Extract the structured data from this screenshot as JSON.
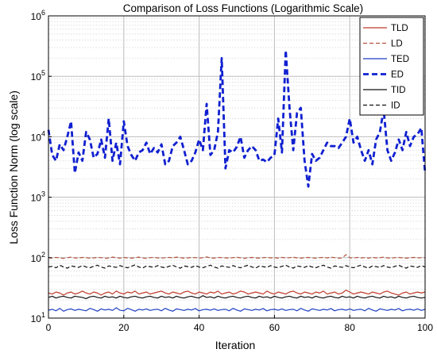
{
  "chart_data": {
    "type": "line",
    "title": "Comparison of Loss Functions (Logarithmic Scale)",
    "xlabel": "Iteration",
    "ylabel": "Loss Function Norm (log scale)",
    "xlim": [
      0,
      100
    ],
    "ylim": [
      10,
      1000000
    ],
    "yscale": "log",
    "grid": true,
    "legend_position": "top-right",
    "x_ticks": [
      "0",
      "20",
      "40",
      "60",
      "80",
      "100"
    ],
    "y_ticks": [
      {
        "base": "10",
        "exp": "1"
      },
      {
        "base": "10",
        "exp": "2"
      },
      {
        "base": "10",
        "exp": "3"
      },
      {
        "base": "10",
        "exp": "4"
      },
      {
        "base": "10",
        "exp": "5"
      },
      {
        "base": "10",
        "exp": "6"
      }
    ],
    "series": [
      {
        "name": "TLD",
        "color": "#c0392b",
        "dash": "solid",
        "width": 1.2,
        "values": [
          26,
          25,
          27,
          26,
          24,
          26,
          27,
          25,
          26,
          28,
          26,
          25,
          27,
          26,
          24,
          26,
          27,
          25,
          28,
          26,
          25,
          27,
          26,
          28,
          25,
          26,
          27,
          25,
          26,
          27,
          28,
          26,
          25,
          27,
          26,
          25,
          27,
          28,
          26,
          25,
          27,
          26,
          25,
          27,
          26,
          28,
          25,
          26,
          27,
          25,
          26,
          28,
          27,
          25,
          26,
          27,
          26,
          25,
          28,
          26,
          25,
          27,
          26,
          25,
          27,
          28,
          26,
          25,
          27,
          26,
          25,
          27,
          26,
          28,
          25,
          26,
          27,
          25,
          26,
          29,
          27,
          25,
          26,
          27,
          26,
          25,
          27,
          26,
          25,
          27,
          28,
          26,
          25,
          24,
          26,
          27,
          25,
          26,
          27,
          26,
          27
        ]
      },
      {
        "name": "LD",
        "color": "#b5523b",
        "dash": "dashed",
        "width": 1.2,
        "values": [
          100,
          98,
          101,
          99,
          97,
          100,
          102,
          99,
          98,
          101,
          100,
          98,
          99,
          101,
          100,
          97,
          99,
          102,
          100,
          98,
          101,
          99,
          98,
          100,
          102,
          99,
          97,
          100,
          101,
          99,
          98,
          100,
          101,
          99,
          102,
          100,
          98,
          99,
          101,
          100,
          98,
          100,
          103,
          99,
          98,
          101,
          100,
          99,
          98,
          100,
          102,
          99,
          97,
          100,
          101,
          99,
          98,
          100,
          101,
          99,
          100,
          98,
          101,
          99,
          100,
          102,
          99,
          98,
          100,
          101,
          99,
          98,
          100,
          101,
          99,
          102,
          100,
          98,
          99,
          112,
          100,
          98,
          101,
          99,
          100,
          98,
          101,
          99,
          100,
          102,
          99,
          98,
          100,
          101,
          99,
          98,
          100,
          101,
          99,
          100,
          100
        ]
      },
      {
        "name": "TED",
        "color": "#1f3fbf",
        "dash": "solid",
        "width": 1.2,
        "values": [
          13.5,
          14,
          13.2,
          14.5,
          13,
          13.8,
          14.2,
          13.4,
          14,
          13.6,
          13.2,
          14.5,
          13.8,
          13,
          14.2,
          13.6,
          14,
          13.4,
          14.8,
          13.5,
          13.2,
          14.5,
          13.8,
          13,
          14,
          13.6,
          14.2,
          13.4,
          13.8,
          14,
          13.2,
          14.5,
          13.6,
          13,
          14.2,
          13.8,
          13.4,
          14,
          13.6,
          14.4,
          13.2,
          13.8,
          14,
          13.5,
          14.2,
          13.4,
          13.8,
          14,
          13.2,
          14.5,
          13.6,
          13,
          14.2,
          13.8,
          13.4,
          14,
          13.6,
          14.4,
          13.2,
          13.8,
          14,
          13.5,
          14.2,
          13.4,
          13.8,
          14,
          13.2,
          14.5,
          13.6,
          13,
          14.2,
          13.8,
          13.4,
          14,
          13.6,
          14.4,
          13.2,
          13.8,
          14,
          13.5,
          14.2,
          13.4,
          13.8,
          14,
          13.2,
          14.5,
          13.6,
          13,
          14.2,
          13.8,
          13.4,
          14,
          13.6,
          14.4,
          13.2,
          13.8,
          14,
          13.5,
          14.2,
          13.4,
          14
        ]
      },
      {
        "name": "ED",
        "color": "#1020d0",
        "dash": "dashed",
        "width": 2.8,
        "values": [
          13000,
          5000,
          4000,
          7500,
          6000,
          10000,
          18000,
          2500,
          5500,
          4000,
          12000,
          9000,
          4500,
          5200,
          9000,
          4500,
          20000,
          4000,
          8000,
          3500,
          18000,
          7000,
          5000,
          4000,
          5500,
          6000,
          8000,
          5200,
          6500,
          5500,
          7500,
          3500,
          4000,
          7000,
          8000,
          10000,
          6000,
          3500,
          4000,
          5500,
          9000,
          6000,
          35000,
          5000,
          6000,
          12000,
          200000,
          3000,
          6000,
          5500,
          6800,
          10000,
          4500,
          6000,
          7000,
          6000,
          4000,
          4200,
          3800,
          4500,
          5000,
          20000,
          5500,
          270000,
          30000,
          6000,
          25000,
          30000,
          4000,
          1500,
          5200,
          4000,
          4500,
          6000,
          8000,
          7000,
          7000,
          6500,
          8000,
          10000,
          20000,
          8000,
          10000,
          6000,
          4000,
          6000,
          3500,
          9000,
          12000,
          28000,
          6000,
          4000,
          5500,
          9000,
          6000,
          12000,
          7000,
          10000,
          11000,
          14000,
          2500
        ]
      },
      {
        "name": "TID",
        "color": "#111111",
        "dash": "solid",
        "width": 1.2,
        "values": [
          22,
          23,
          21.5,
          22.5,
          23,
          22,
          21.5,
          23,
          22.5,
          22,
          21,
          22.5,
          23,
          22,
          21.5,
          23,
          22,
          22.5,
          21.5,
          23,
          22,
          21.5,
          22.5,
          23,
          22,
          21.5,
          22.5,
          23,
          22,
          21.5,
          23,
          22,
          22.5,
          21.5,
          23,
          22,
          21.5,
          22.5,
          23,
          22,
          21.5,
          23.5,
          22,
          22.5,
          21.5,
          23,
          22,
          21.5,
          22.5,
          23,
          22,
          21.5,
          22.5,
          23,
          22,
          21.5,
          23,
          22,
          22.5,
          21.5,
          23,
          22,
          21.5,
          22.5,
          23,
          22,
          21.5,
          23,
          22,
          22.5,
          21.5,
          23,
          22,
          21.5,
          22.5,
          23,
          22,
          21.5,
          23,
          22,
          22.5,
          21.5,
          23,
          22,
          21.5,
          22.5,
          23,
          22,
          21.5,
          23,
          22,
          22.5,
          21.5,
          23,
          22,
          21.5,
          22.5,
          23,
          22,
          21.5,
          22
        ]
      },
      {
        "name": "ID",
        "color": "#111111",
        "dash": "dashed",
        "width": 1.2,
        "values": [
          70,
          72,
          68,
          75,
          70,
          67,
          73,
          71,
          69,
          74,
          70,
          68,
          72,
          75,
          70,
          67,
          73,
          71,
          69,
          74,
          70,
          68,
          72,
          76,
          70,
          67,
          73,
          71,
          69,
          74,
          70,
          68,
          72,
          75,
          70,
          67,
          73,
          71,
          69,
          74,
          70,
          68,
          72,
          75,
          70,
          67,
          73,
          71,
          69,
          74,
          70,
          68,
          72,
          75,
          70,
          67,
          73,
          71,
          69,
          74,
          70,
          68,
          72,
          75,
          70,
          67,
          73,
          71,
          69,
          74,
          70,
          68,
          72,
          75,
          70,
          67,
          73,
          71,
          69,
          74,
          70,
          68,
          72,
          75,
          70,
          67,
          73,
          71,
          69,
          74,
          70,
          68,
          72,
          75,
          70,
          67,
          73,
          71,
          69,
          74,
          70
        ]
      }
    ]
  }
}
